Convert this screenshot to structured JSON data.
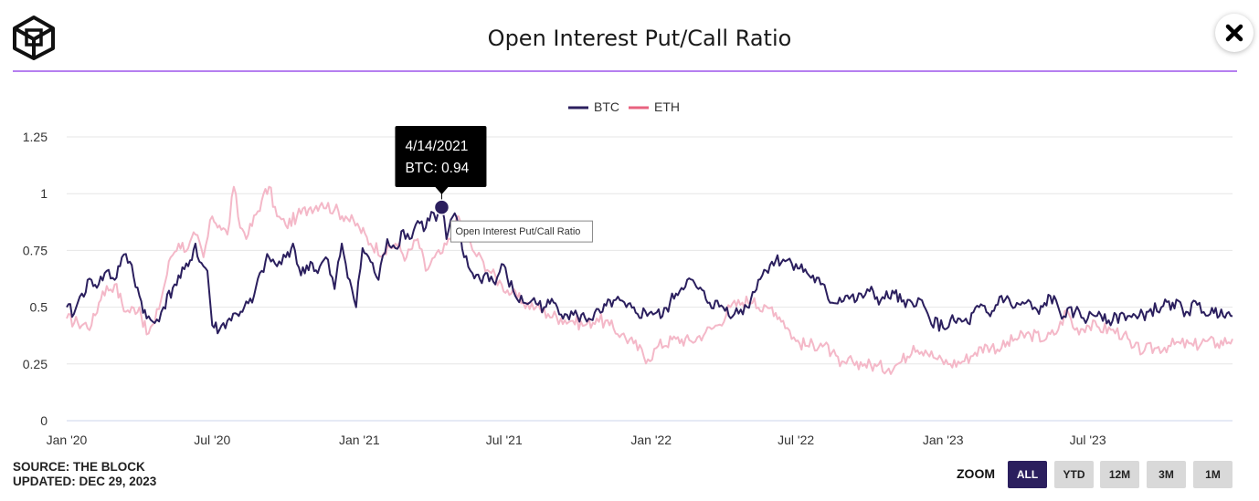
{
  "header": {
    "title": "Open Interest Put/Call Ratio",
    "logo_icon": "cube-logo-icon",
    "close_icon": "close-icon"
  },
  "footer": {
    "source": "SOURCE: THE BLOCK",
    "updated": "UPDATED: DEC 29, 2023"
  },
  "zoom": {
    "label": "ZOOM",
    "buttons": [
      "ALL",
      "YTD",
      "12M",
      "3M",
      "1M"
    ],
    "active": "ALL"
  },
  "tooltip": {
    "date": "4/14/2021",
    "value": "BTC: 0.94",
    "hover_label": "Open Interest Put/Call Ratio"
  },
  "colors": {
    "btc": "#2b1f5e",
    "eth": "#f4b8c8",
    "accent": "#b67ff0",
    "active_button": "#2b1f5e"
  },
  "chart_data": {
    "type": "line",
    "title": "Open Interest Put/Call Ratio",
    "xlabel": "",
    "ylabel": "",
    "x_ticks": [
      "Jan '20",
      "Jul '20",
      "Jan '21",
      "Jul '21",
      "Jan '22",
      "Jul '22",
      "Jan '23",
      "Jul '23"
    ],
    "y_ticks": [
      "0",
      "0.25",
      "0.5",
      "0.75",
      "1",
      "1.25"
    ],
    "ylim": [
      0,
      1.25
    ],
    "xlim": [
      "2020-01-01",
      "2023-12-29"
    ],
    "grid": true,
    "legend": "top-center",
    "series": [
      {
        "name": "BTC",
        "color": "#2b1f5e",
        "points": [
          [
            "2020-01-01",
            0.5
          ],
          [
            "2020-01-10",
            0.47
          ],
          [
            "2020-01-20",
            0.56
          ],
          [
            "2020-02-01",
            0.62
          ],
          [
            "2020-02-10",
            0.6
          ],
          [
            "2020-02-20",
            0.66
          ],
          [
            "2020-03-01",
            0.62
          ],
          [
            "2020-03-10",
            0.72
          ],
          [
            "2020-03-20",
            0.7
          ],
          [
            "2020-04-01",
            0.55
          ],
          [
            "2020-04-10",
            0.45
          ],
          [
            "2020-04-20",
            0.43
          ],
          [
            "2020-05-01",
            0.5
          ],
          [
            "2020-05-15",
            0.6
          ],
          [
            "2020-06-01",
            0.68
          ],
          [
            "2020-06-10",
            0.78
          ],
          [
            "2020-06-15",
            0.7
          ],
          [
            "2020-06-25",
            0.66
          ],
          [
            "2020-07-01",
            0.42
          ],
          [
            "2020-07-10",
            0.4
          ],
          [
            "2020-07-20",
            0.44
          ],
          [
            "2020-08-01",
            0.47
          ],
          [
            "2020-08-10",
            0.5
          ],
          [
            "2020-08-20",
            0.52
          ],
          [
            "2020-09-01",
            0.66
          ],
          [
            "2020-09-10",
            0.72
          ],
          [
            "2020-09-20",
            0.68
          ],
          [
            "2020-10-01",
            0.72
          ],
          [
            "2020-10-10",
            0.78
          ],
          [
            "2020-10-20",
            0.64
          ],
          [
            "2020-11-01",
            0.7
          ],
          [
            "2020-11-10",
            0.65
          ],
          [
            "2020-11-20",
            0.72
          ],
          [
            "2020-12-01",
            0.58
          ],
          [
            "2020-12-10",
            0.78
          ],
          [
            "2020-12-20",
            0.62
          ],
          [
            "2020-12-28",
            0.5
          ],
          [
            "2021-01-05",
            0.76
          ],
          [
            "2021-01-15",
            0.7
          ],
          [
            "2021-01-25",
            0.62
          ],
          [
            "2021-02-05",
            0.8
          ],
          [
            "2021-02-15",
            0.76
          ],
          [
            "2021-02-25",
            0.84
          ],
          [
            "2021-03-05",
            0.8
          ],
          [
            "2021-03-15",
            0.88
          ],
          [
            "2021-03-25",
            0.85
          ],
          [
            "2021-04-01",
            0.92
          ],
          [
            "2021-04-07",
            0.88
          ],
          [
            "2021-04-14",
            0.94
          ],
          [
            "2021-04-20",
            0.8
          ],
          [
            "2021-04-28",
            0.9
          ],
          [
            "2021-05-05",
            0.86
          ],
          [
            "2021-05-12",
            0.72
          ],
          [
            "2021-05-20",
            0.66
          ],
          [
            "2021-06-01",
            0.62
          ],
          [
            "2021-06-10",
            0.65
          ],
          [
            "2021-06-20",
            0.6
          ],
          [
            "2021-06-28",
            0.69
          ],
          [
            "2021-07-05",
            0.63
          ],
          [
            "2021-07-15",
            0.55
          ],
          [
            "2021-07-25",
            0.52
          ],
          [
            "2021-08-05",
            0.53
          ],
          [
            "2021-08-20",
            0.5
          ],
          [
            "2021-09-01",
            0.52
          ],
          [
            "2021-09-15",
            0.47
          ],
          [
            "2021-10-01",
            0.46
          ],
          [
            "2021-10-15",
            0.45
          ],
          [
            "2021-11-01",
            0.48
          ],
          [
            "2021-11-15",
            0.53
          ],
          [
            "2021-12-01",
            0.5
          ],
          [
            "2021-12-15",
            0.47
          ],
          [
            "2022-01-01",
            0.48
          ],
          [
            "2022-01-15",
            0.46
          ],
          [
            "2022-02-01",
            0.56
          ],
          [
            "2022-02-15",
            0.62
          ],
          [
            "2022-03-01",
            0.58
          ],
          [
            "2022-03-15",
            0.52
          ],
          [
            "2022-04-01",
            0.5
          ],
          [
            "2022-04-15",
            0.47
          ],
          [
            "2022-05-01",
            0.5
          ],
          [
            "2022-05-15",
            0.62
          ],
          [
            "2022-06-01",
            0.7
          ],
          [
            "2022-06-15",
            0.71
          ],
          [
            "2022-07-01",
            0.69
          ],
          [
            "2022-07-15",
            0.65
          ],
          [
            "2022-08-01",
            0.6
          ],
          [
            "2022-08-15",
            0.52
          ],
          [
            "2022-09-01",
            0.55
          ],
          [
            "2022-09-15",
            0.53
          ],
          [
            "2022-10-01",
            0.57
          ],
          [
            "2022-10-15",
            0.53
          ],
          [
            "2022-11-01",
            0.56
          ],
          [
            "2022-11-15",
            0.5
          ],
          [
            "2022-12-01",
            0.54
          ],
          [
            "2022-12-15",
            0.45
          ],
          [
            "2023-01-01",
            0.41
          ],
          [
            "2023-01-15",
            0.44
          ],
          [
            "2023-02-01",
            0.43
          ],
          [
            "2023-02-15",
            0.5
          ],
          [
            "2023-03-01",
            0.46
          ],
          [
            "2023-03-15",
            0.55
          ],
          [
            "2023-04-01",
            0.5
          ],
          [
            "2023-04-15",
            0.52
          ],
          [
            "2023-05-01",
            0.47
          ],
          [
            "2023-05-15",
            0.55
          ],
          [
            "2023-06-01",
            0.46
          ],
          [
            "2023-06-15",
            0.48
          ],
          [
            "2023-07-01",
            0.45
          ],
          [
            "2023-07-15",
            0.48
          ],
          [
            "2023-08-01",
            0.44
          ],
          [
            "2023-08-15",
            0.47
          ],
          [
            "2023-09-01",
            0.45
          ],
          [
            "2023-09-15",
            0.48
          ],
          [
            "2023-10-01",
            0.5
          ],
          [
            "2023-10-15",
            0.52
          ],
          [
            "2023-11-01",
            0.48
          ],
          [
            "2023-11-15",
            0.51
          ],
          [
            "2023-12-01",
            0.47
          ],
          [
            "2023-12-15",
            0.49
          ],
          [
            "2023-12-29",
            0.46
          ]
        ]
      },
      {
        "name": "ETH",
        "color": "#f4b8c8",
        "points": [
          [
            "2020-01-01",
            0.45
          ],
          [
            "2020-01-15",
            0.43
          ],
          [
            "2020-02-01",
            0.42
          ],
          [
            "2020-02-15",
            0.57
          ],
          [
            "2020-03-01",
            0.6
          ],
          [
            "2020-03-15",
            0.48
          ],
          [
            "2020-04-01",
            0.5
          ],
          [
            "2020-04-10",
            0.38
          ],
          [
            "2020-04-20",
            0.43
          ],
          [
            "2020-05-01",
            0.58
          ],
          [
            "2020-05-10",
            0.72
          ],
          [
            "2020-05-20",
            0.78
          ],
          [
            "2020-06-01",
            0.76
          ],
          [
            "2020-06-10",
            0.82
          ],
          [
            "2020-06-20",
            0.72
          ],
          [
            "2020-07-01",
            0.9
          ],
          [
            "2020-07-10",
            0.86
          ],
          [
            "2020-07-20",
            0.82
          ],
          [
            "2020-07-28",
            1.03
          ],
          [
            "2020-08-05",
            0.85
          ],
          [
            "2020-08-15",
            0.82
          ],
          [
            "2020-09-01",
            0.97
          ],
          [
            "2020-09-10",
            1.03
          ],
          [
            "2020-09-20",
            0.9
          ],
          [
            "2020-10-01",
            0.86
          ],
          [
            "2020-10-15",
            0.9
          ],
          [
            "2020-11-01",
            0.94
          ],
          [
            "2020-11-15",
            0.96
          ],
          [
            "2020-12-01",
            0.93
          ],
          [
            "2020-12-15",
            0.9
          ],
          [
            "2021-01-01",
            0.85
          ],
          [
            "2021-01-15",
            0.78
          ],
          [
            "2021-02-01",
            0.74
          ],
          [
            "2021-02-15",
            0.78
          ],
          [
            "2021-03-01",
            0.72
          ],
          [
            "2021-03-15",
            0.8
          ],
          [
            "2021-03-25",
            0.66
          ],
          [
            "2021-04-05",
            0.72
          ],
          [
            "2021-04-15",
            0.74
          ],
          [
            "2021-04-25",
            0.8
          ],
          [
            "2021-05-05",
            0.9
          ],
          [
            "2021-05-15",
            0.8
          ],
          [
            "2021-05-25",
            0.74
          ],
          [
            "2021-06-05",
            0.7
          ],
          [
            "2021-06-15",
            0.65
          ],
          [
            "2021-06-28",
            0.6
          ],
          [
            "2021-07-10",
            0.56
          ],
          [
            "2021-07-25",
            0.52
          ],
          [
            "2021-08-10",
            0.5
          ],
          [
            "2021-08-25",
            0.47
          ],
          [
            "2021-09-10",
            0.45
          ],
          [
            "2021-09-25",
            0.44
          ],
          [
            "2021-10-10",
            0.42
          ],
          [
            "2021-10-25",
            0.45
          ],
          [
            "2021-11-10",
            0.42
          ],
          [
            "2021-11-25",
            0.38
          ],
          [
            "2021-12-10",
            0.34
          ],
          [
            "2021-12-28",
            0.27
          ],
          [
            "2022-01-10",
            0.33
          ],
          [
            "2022-02-01",
            0.36
          ],
          [
            "2022-02-20",
            0.35
          ],
          [
            "2022-03-10",
            0.39
          ],
          [
            "2022-03-25",
            0.42
          ],
          [
            "2022-04-10",
            0.5
          ],
          [
            "2022-04-25",
            0.52
          ],
          [
            "2022-05-10",
            0.54
          ],
          [
            "2022-05-20",
            0.48
          ],
          [
            "2022-06-01",
            0.5
          ],
          [
            "2022-06-15",
            0.44
          ],
          [
            "2022-07-01",
            0.35
          ],
          [
            "2022-07-15",
            0.33
          ],
          [
            "2022-08-01",
            0.34
          ],
          [
            "2022-08-15",
            0.3
          ],
          [
            "2022-08-25",
            0.24
          ],
          [
            "2022-09-10",
            0.26
          ],
          [
            "2022-09-25",
            0.25
          ],
          [
            "2022-10-10",
            0.24
          ],
          [
            "2022-10-25",
            0.23
          ],
          [
            "2022-11-10",
            0.26
          ],
          [
            "2022-11-25",
            0.33
          ],
          [
            "2022-12-10",
            0.31
          ],
          [
            "2022-12-25",
            0.27
          ],
          [
            "2023-01-10",
            0.25
          ],
          [
            "2023-01-25",
            0.26
          ],
          [
            "2023-02-10",
            0.3
          ],
          [
            "2023-02-25",
            0.33
          ],
          [
            "2023-03-15",
            0.32
          ],
          [
            "2023-04-01",
            0.36
          ],
          [
            "2023-04-20",
            0.38
          ],
          [
            "2023-05-10",
            0.36
          ],
          [
            "2023-05-25",
            0.4
          ],
          [
            "2023-06-05",
            0.49
          ],
          [
            "2023-06-15",
            0.4
          ],
          [
            "2023-06-30",
            0.42
          ],
          [
            "2023-07-15",
            0.41
          ],
          [
            "2023-07-30",
            0.4
          ],
          [
            "2023-08-15",
            0.38
          ],
          [
            "2023-08-25",
            0.32
          ],
          [
            "2023-09-10",
            0.31
          ],
          [
            "2023-09-25",
            0.32
          ],
          [
            "2023-10-10",
            0.33
          ],
          [
            "2023-10-25",
            0.34
          ],
          [
            "2023-11-10",
            0.33
          ],
          [
            "2023-11-25",
            0.35
          ],
          [
            "2023-12-10",
            0.34
          ],
          [
            "2023-12-29",
            0.36
          ]
        ]
      }
    ],
    "highlight_point": {
      "series": "BTC",
      "x": "2021-04-14",
      "y": 0.94
    }
  }
}
